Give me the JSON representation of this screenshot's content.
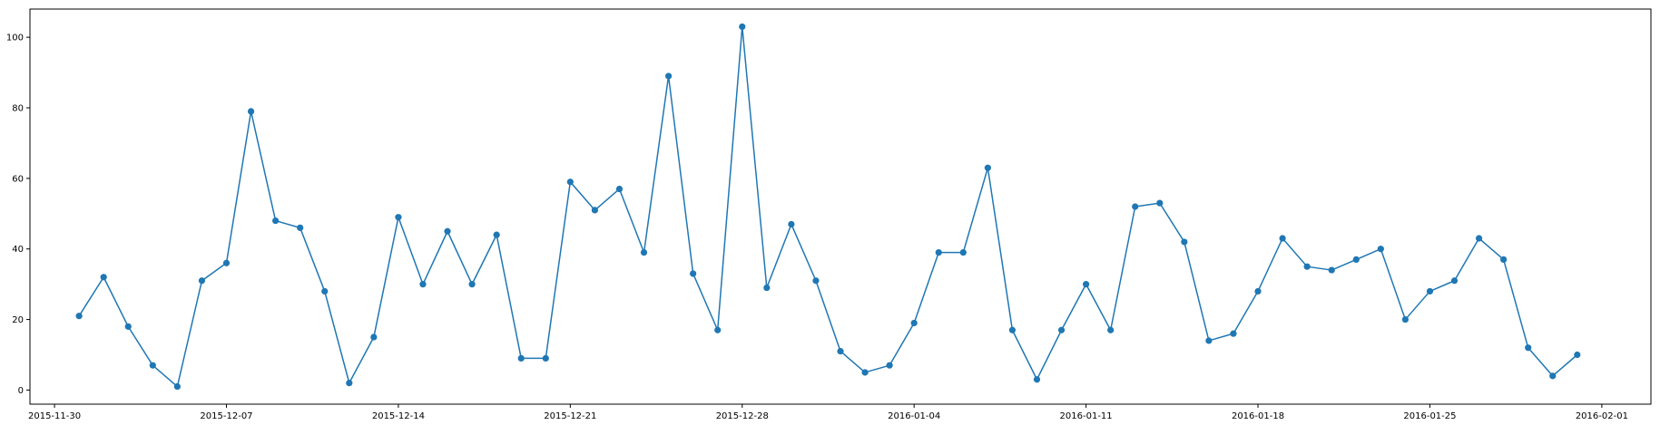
{
  "chart_data": {
    "type": "line",
    "title": "",
    "xlabel": "",
    "ylabel": "",
    "grid": false,
    "marker": "circle",
    "color": "#1f77b4",
    "x_axis": {
      "kind": "date",
      "range": [
        "2015-11-29",
        "2016-02-03"
      ],
      "ticks": [
        "2015-11-30",
        "2015-12-07",
        "2015-12-14",
        "2015-12-21",
        "2015-12-28",
        "2016-01-04",
        "2016-01-11",
        "2016-01-18",
        "2016-01-25",
        "2016-02-01"
      ]
    },
    "y_axis": {
      "range": [
        -4,
        108
      ],
      "ticks": [
        0,
        20,
        40,
        60,
        80,
        100
      ]
    },
    "series": [
      {
        "x": [
          "2015-12-01",
          "2015-12-02",
          "2015-12-03",
          "2015-12-04",
          "2015-12-05",
          "2015-12-06",
          "2015-12-07",
          "2015-12-08",
          "2015-12-09",
          "2015-12-10",
          "2015-12-11",
          "2015-12-12",
          "2015-12-13",
          "2015-12-14",
          "2015-12-15",
          "2015-12-16",
          "2015-12-17",
          "2015-12-18",
          "2015-12-19",
          "2015-12-20",
          "2015-12-21",
          "2015-12-22",
          "2015-12-23",
          "2015-12-24",
          "2015-12-25",
          "2015-12-26",
          "2015-12-27",
          "2015-12-28",
          "2015-12-29",
          "2015-12-30",
          "2015-12-31",
          "2016-01-01",
          "2016-01-02",
          "2016-01-03",
          "2016-01-04",
          "2016-01-05",
          "2016-01-06",
          "2016-01-07",
          "2016-01-08",
          "2016-01-09",
          "2016-01-10",
          "2016-01-11",
          "2016-01-12",
          "2016-01-13",
          "2016-01-14",
          "2016-01-15",
          "2016-01-16",
          "2016-01-17",
          "2016-01-18",
          "2016-01-19",
          "2016-01-20",
          "2016-01-21",
          "2016-01-22",
          "2016-01-23",
          "2016-01-24",
          "2016-01-25",
          "2016-01-26",
          "2016-01-27",
          "2016-01-28",
          "2016-01-29",
          "2016-01-30",
          "2016-01-31"
        ],
        "values": [
          21,
          32,
          18,
          7,
          1,
          31,
          36,
          79,
          48,
          46,
          28,
          2,
          15,
          49,
          30,
          45,
          30,
          44,
          9,
          9,
          59,
          51,
          57,
          39,
          89,
          33,
          17,
          103,
          29,
          47,
          31,
          11,
          5,
          7,
          19,
          39,
          39,
          63,
          17,
          3,
          17,
          30,
          17,
          52,
          53,
          42,
          14,
          16,
          28,
          43,
          35,
          34,
          37,
          40,
          20,
          28,
          31,
          43,
          37,
          12,
          4,
          10
        ]
      }
    ]
  }
}
